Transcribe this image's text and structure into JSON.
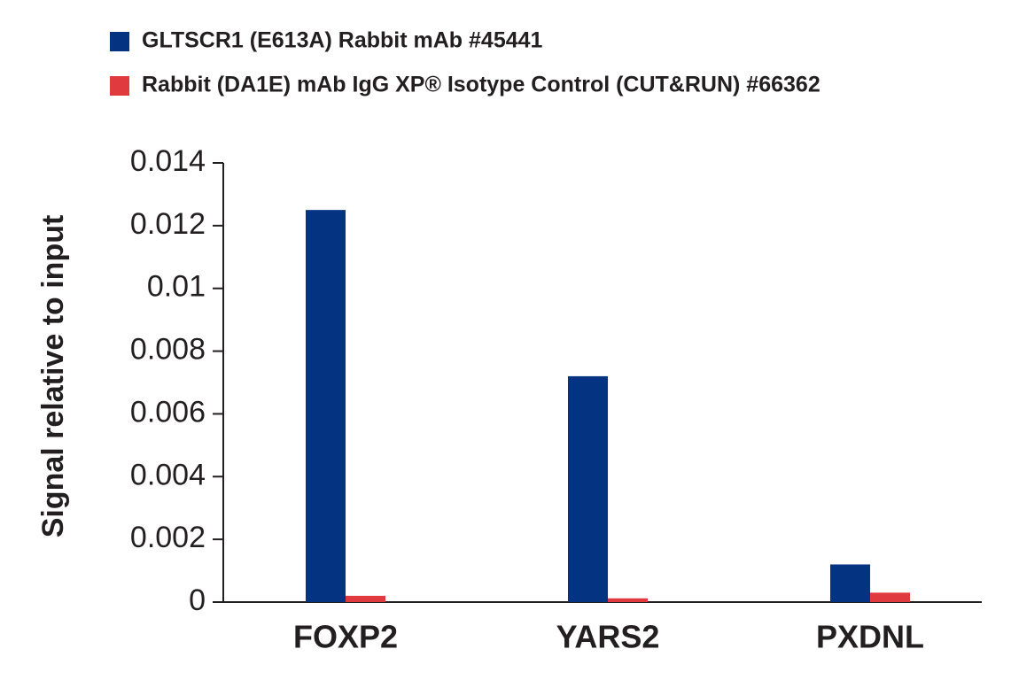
{
  "chart_data": {
    "type": "bar",
    "y_label": "Signal relative to input",
    "categories": [
      "FOXP2",
      "YARS2",
      "PXDNL"
    ],
    "series": [
      {
        "name": "GLTSCR1 (E613A) Rabbit mAb #45441",
        "color": "#043481",
        "values": [
          0.0125,
          0.0072,
          0.0012
        ]
      },
      {
        "name": "Rabbit (DA1E) mAb IgG XP® Isotype Control (CUT&RUN) #66362",
        "color": "#e03a3e",
        "values": [
          0.0002,
          0.00012,
          0.0003
        ]
      }
    ],
    "ylim": [
      0,
      0.014
    ],
    "yticks": [
      0,
      0.002,
      0.004,
      0.006,
      0.008,
      0.01,
      0.012,
      0.014
    ],
    "grid": false
  }
}
